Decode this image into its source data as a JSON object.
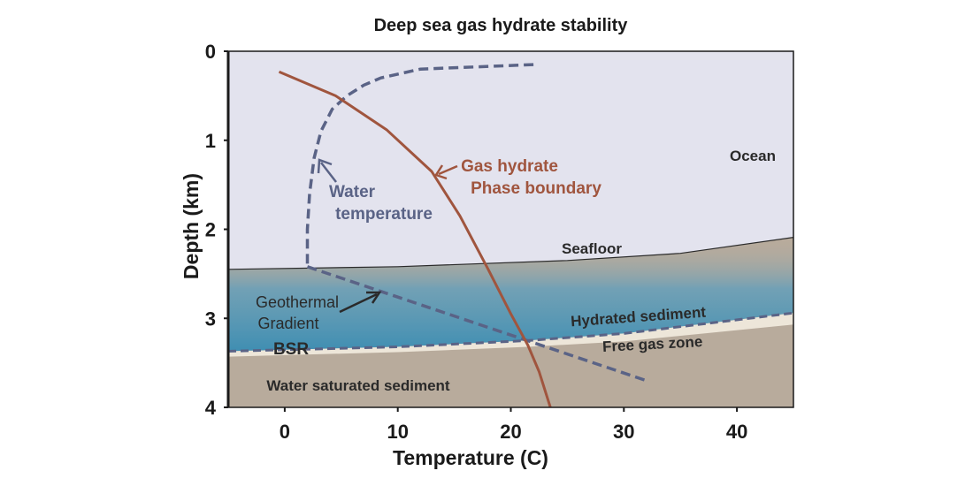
{
  "chart_data": {
    "type": "line",
    "title": "Deep sea gas hydrate stability",
    "xlabel": "Temperature (C)",
    "ylabel": "Depth (km)",
    "xlim": [
      -5,
      45
    ],
    "ylim": [
      0,
      4
    ],
    "y_inverted": true,
    "x_ticks": [
      0,
      10,
      20,
      30,
      40
    ],
    "y_ticks": [
      0,
      1,
      2,
      3,
      4
    ],
    "grid": false,
    "series": [
      {
        "name": "Water temperature",
        "style": "dashed",
        "color": "#5a6386",
        "points": [
          [
            22,
            0.15
          ],
          [
            12,
            0.2
          ],
          [
            8.5,
            0.3
          ],
          [
            7,
            0.38
          ],
          [
            5.5,
            0.5
          ],
          [
            4.2,
            0.65
          ],
          [
            3.2,
            0.9
          ],
          [
            2.6,
            1.2
          ],
          [
            2.2,
            1.6
          ],
          [
            2,
            2.0
          ],
          [
            2,
            2.42
          ]
        ]
      },
      {
        "name": "Geothermal Gradient",
        "style": "dashed",
        "color": "#5a6386",
        "points": [
          [
            2,
            2.42
          ],
          [
            32,
            3.7
          ]
        ]
      },
      {
        "name": "Gas hydrate Phase boundary",
        "style": "solid",
        "color": "#a0553e",
        "points": [
          [
            -0.5,
            0.23
          ],
          [
            4.5,
            0.5
          ],
          [
            9,
            0.88
          ],
          [
            13,
            1.35
          ],
          [
            15.5,
            1.85
          ],
          [
            18,
            2.45
          ],
          [
            20,
            2.95
          ],
          [
            21.5,
            3.3
          ],
          [
            22.5,
            3.6
          ],
          [
            23.5,
            4.0
          ]
        ]
      }
    ],
    "regions": {
      "seafloor_boundary": [
        [
          -5,
          2.45
        ],
        [
          10,
          2.42
        ],
        [
          25,
          2.35
        ],
        [
          35,
          2.27
        ],
        [
          45,
          2.09
        ]
      ],
      "bsr_boundary": [
        [
          -5,
          3.37
        ],
        [
          10,
          3.32
        ],
        [
          21.5,
          3.25
        ],
        [
          30,
          3.17
        ],
        [
          45,
          2.94
        ]
      ],
      "free_gas_lower": [
        [
          -5,
          3.43
        ],
        [
          10,
          3.38
        ],
        [
          21.5,
          3.32
        ],
        [
          30,
          3.26
        ],
        [
          45,
          3.07
        ]
      ]
    },
    "annotations": {
      "ocean": "Ocean",
      "seafloor": "Seafloor",
      "hydrated_sediment": "Hydrated sediment",
      "free_gas_zone": "Free gas zone",
      "water_saturated": "Water saturated sediment",
      "bsr": "BSR",
      "geothermal_line1": "Geothermal",
      "geothermal_line2": "Gradient",
      "water_temp_line1": "Water",
      "water_temp_line2": "temperature",
      "hydrate_line1": "Gas hydrate",
      "hydrate_line2": "Phase boundary"
    },
    "colors": {
      "ocean": "#e3e3ee",
      "sediment": "#b8ab9c",
      "hydrated": "#3f8eb2",
      "free_gas": "#f3ece0",
      "water_line": "#5a6386",
      "hydrate_line": "#a0553e"
    }
  }
}
